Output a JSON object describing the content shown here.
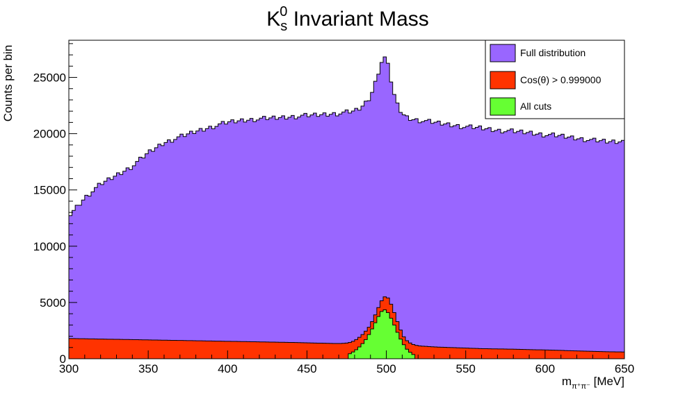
{
  "chart_data": {
    "type": "histogram",
    "title": {
      "base": "K",
      "superscript": "0",
      "subscript": "s",
      "rest": " Invariant Mass"
    },
    "xlabel": {
      "base": "m",
      "subscript": "π⁺π⁻",
      "unit": " [MeV]"
    },
    "ylabel": "Counts per bin",
    "xlim": [
      300,
      650
    ],
    "ylim": [
      0,
      28300
    ],
    "x_ticks": [
      300,
      350,
      400,
      450,
      500,
      550,
      600,
      650
    ],
    "x_tick_labels": [
      "300",
      "350",
      "400",
      "450",
      "500",
      "550",
      "600",
      "650"
    ],
    "y_ticks": [
      0,
      5000,
      10000,
      15000,
      20000,
      25000
    ],
    "y_tick_labels": [
      "0",
      "5000",
      "10000",
      "15000",
      "20000",
      "25000"
    ],
    "bin_width": 2,
    "grid": false,
    "legend_position": "top-right",
    "legend": [
      {
        "label": "Full distribution",
        "color": "#9966ff"
      },
      {
        "label": "Cos(θ) > 0.999000",
        "color": "#ff3300"
      },
      {
        "label": "All cuts",
        "color": "#66ff33"
      }
    ],
    "series": [
      {
        "name": "Full distribution",
        "color": "#9966ff",
        "x": [
          300,
          310,
          320,
          330,
          340,
          350,
          360,
          370,
          380,
          390,
          400,
          410,
          420,
          430,
          440,
          450,
          460,
          470,
          480,
          484,
          488,
          490,
          492,
          494,
          496,
          498,
          500,
          502,
          504,
          506,
          508,
          512,
          516,
          520,
          530,
          540,
          550,
          560,
          570,
          580,
          590,
          600,
          610,
          620,
          630,
          640,
          650
        ],
        "values": [
          12700,
          14300,
          15500,
          16300,
          17100,
          18300,
          19200,
          19700,
          20200,
          20600,
          21000,
          21200,
          21300,
          21400,
          21500,
          21600,
          21700,
          21800,
          22000,
          22300,
          22900,
          23300,
          24100,
          25000,
          26000,
          26800,
          26700,
          25400,
          24000,
          22900,
          22200,
          21500,
          21300,
          21200,
          21000,
          20800,
          20600,
          20500,
          20300,
          20200,
          20100,
          19900,
          19800,
          19600,
          19400,
          19300,
          19300
        ]
      },
      {
        "name": "Cos(θ) > 0.999000",
        "color": "#ff3300",
        "x": [
          300,
          320,
          340,
          360,
          380,
          400,
          420,
          440,
          460,
          470,
          476,
          480,
          484,
          488,
          490,
          492,
          494,
          496,
          498,
          500,
          502,
          504,
          506,
          508,
          510,
          512,
          516,
          520,
          530,
          540,
          560,
          580,
          600,
          620,
          640,
          650
        ],
        "values": [
          1800,
          1750,
          1700,
          1650,
          1600,
          1550,
          1500,
          1450,
          1380,
          1350,
          1400,
          1600,
          2000,
          2600,
          3000,
          3600,
          4200,
          4900,
          5400,
          5600,
          5200,
          4500,
          3700,
          2900,
          2200,
          1700,
          1300,
          1150,
          1050,
          1000,
          900,
          850,
          780,
          700,
          620,
          600
        ]
      },
      {
        "name": "All cuts",
        "color": "#66ff33",
        "x": [
          476,
          478,
          480,
          482,
          484,
          486,
          488,
          490,
          492,
          494,
          496,
          498,
          500,
          502,
          504,
          506,
          508,
          510,
          512,
          514,
          516,
          518
        ],
        "values": [
          400,
          500,
          700,
          900,
          1200,
          1500,
          1900,
          2400,
          2900,
          3500,
          4000,
          4400,
          4300,
          3900,
          3300,
          2700,
          2000,
          1500,
          1000,
          700,
          450,
          300
        ]
      }
    ]
  }
}
